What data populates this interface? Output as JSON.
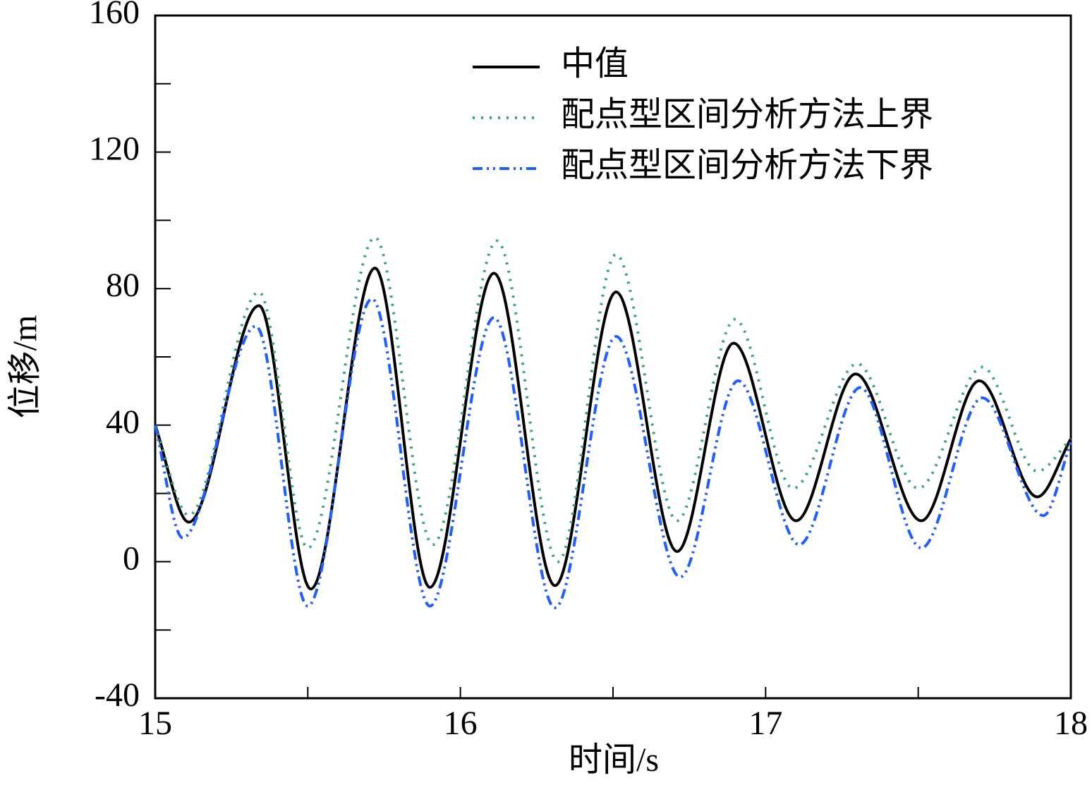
{
  "chart_data": {
    "type": "line",
    "xlabel": "时间/s",
    "ylabel": "位移/m",
    "xlim": [
      15,
      18
    ],
    "ylim": [
      -40,
      160
    ],
    "xticks": [
      15,
      16,
      17,
      18
    ],
    "yticks": [
      -40,
      0,
      40,
      80,
      120,
      160
    ],
    "xminorticks": [
      15.5,
      16.5,
      17.5
    ],
    "yminorticks": [
      -20,
      20,
      60,
      100,
      140
    ],
    "legend": "upper right",
    "series": [
      {
        "name": "中值",
        "color": "#000000",
        "dash": "solid",
        "x": [
          15,
          15.11,
          15.34,
          15.51,
          15.72,
          15.9,
          16.11,
          16.31,
          16.51,
          16.71,
          16.895,
          17.1,
          17.295,
          17.51,
          17.7,
          17.89,
          18
        ],
        "values": [
          40,
          11.6,
          75,
          -8,
          86,
          -7.5,
          84.5,
          -7,
          79,
          3,
          64,
          12,
          55,
          12,
          53,
          19,
          36
        ]
      },
      {
        "name": "配点型区间分析方法上界",
        "color": "#3aa57a",
        "dash": "dotted",
        "x": [
          15,
          15.11,
          15.34,
          15.5,
          15.72,
          15.91,
          16.12,
          16.32,
          16.51,
          16.71,
          16.9,
          17.09,
          17.3,
          17.5,
          17.71,
          17.89,
          18
        ],
        "values": [
          40,
          13.6,
          79,
          4,
          95,
          5,
          94,
          0,
          90,
          12,
          71,
          21.5,
          58,
          21.5,
          57,
          26.5,
          36
        ]
      },
      {
        "name": "配点型区间分析方法下界",
        "color": "#1f5fff",
        "dash": "dashdotdot",
        "x": [
          15,
          15.09,
          15.33,
          15.5,
          15.71,
          15.9,
          16.11,
          16.31,
          16.51,
          16.72,
          16.91,
          17.11,
          17.31,
          17.51,
          17.71,
          17.91,
          18
        ],
        "values": [
          40,
          7,
          69,
          -13,
          77,
          -13,
          71.5,
          -13.5,
          66,
          -4.5,
          53,
          5,
          51,
          4,
          48,
          13.5,
          35
        ]
      }
    ]
  }
}
